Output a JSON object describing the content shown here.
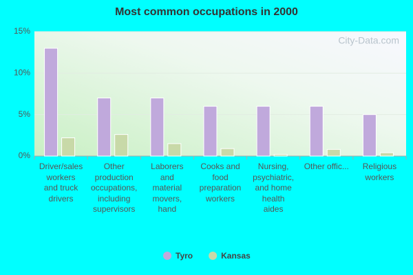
{
  "chart_data": {
    "type": "bar",
    "title": "Most common occupations in 2000",
    "watermark": "City-Data.com",
    "categories": [
      "Driver/sales\nworkers\nand truck\ndrivers",
      "Other\nproduction\noccupations,\nincluding\nsupervisors",
      "Laborers\nand\nmaterial\nmovers,\nhand",
      "Cooks and\nfood\npreparation\nworkers",
      "Nursing,\npsychiatric,\nand home\nhealth\naides",
      "Other offic...",
      "Religious\nworkers"
    ],
    "series": [
      {
        "name": "Tyro",
        "color": "#c0a9dc",
        "values": [
          13,
          7,
          7,
          6,
          6,
          6,
          5
        ]
      },
      {
        "name": "Kansas",
        "color": "#c8d9a8",
        "values": [
          2.2,
          2.6,
          1.5,
          0.9,
          0.2,
          0.8,
          0.4
        ]
      }
    ],
    "ylim": [
      0,
      15
    ],
    "yticks": [
      {
        "value": 0,
        "label": "0%"
      },
      {
        "value": 5,
        "label": "5%"
      },
      {
        "value": 10,
        "label": "10%"
      },
      {
        "value": 15,
        "label": "15%"
      }
    ],
    "grid": true,
    "legend": "bottom"
  }
}
